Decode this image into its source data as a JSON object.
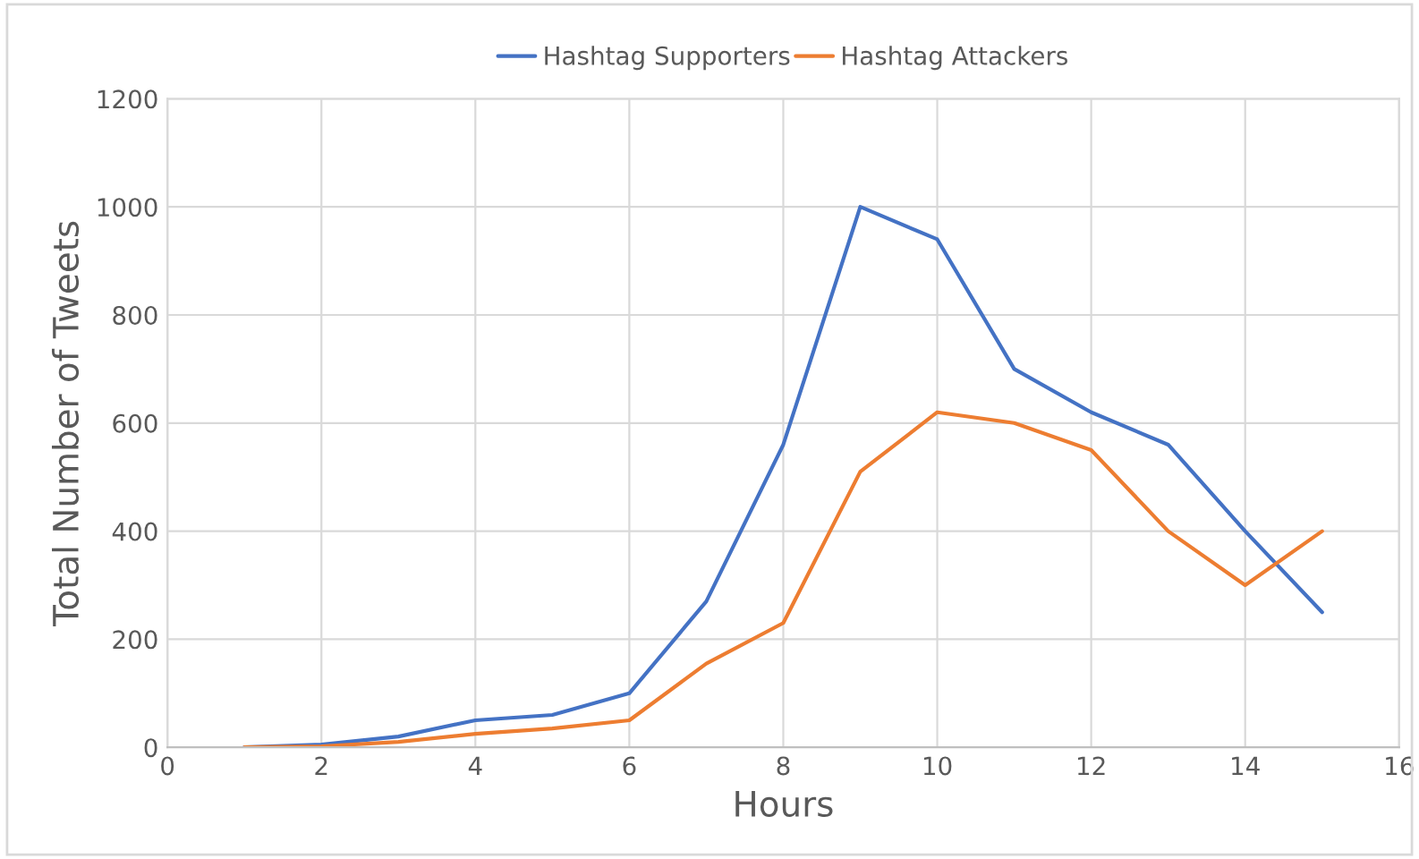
{
  "chart_data": {
    "type": "line",
    "xlabel": "Hours",
    "ylabel": "Total Number of Tweets",
    "x": [
      1,
      2,
      3,
      4,
      5,
      6,
      7,
      8,
      9,
      10,
      11,
      12,
      13,
      14,
      15
    ],
    "series": [
      {
        "name": "Hashtag Supporters",
        "color": "#4472c4",
        "values": [
          0,
          5,
          20,
          50,
          60,
          100,
          270,
          560,
          1000,
          940,
          700,
          620,
          560,
          400,
          250
        ]
      },
      {
        "name": "Hashtag Attackers",
        "color": "#ed7d31",
        "values": [
          0,
          2,
          10,
          25,
          35,
          50,
          155,
          230,
          510,
          620,
          600,
          550,
          400,
          300,
          400
        ]
      }
    ],
    "xlim": [
      0,
      16
    ],
    "xticks": [
      0,
      2,
      4,
      6,
      8,
      10,
      12,
      14,
      16
    ],
    "ylim": [
      0,
      1200
    ],
    "yticks": [
      0,
      200,
      400,
      600,
      800,
      1000,
      1200
    ],
    "grid": true,
    "legend": "top",
    "marker": "none",
    "line_style": "solid"
  }
}
